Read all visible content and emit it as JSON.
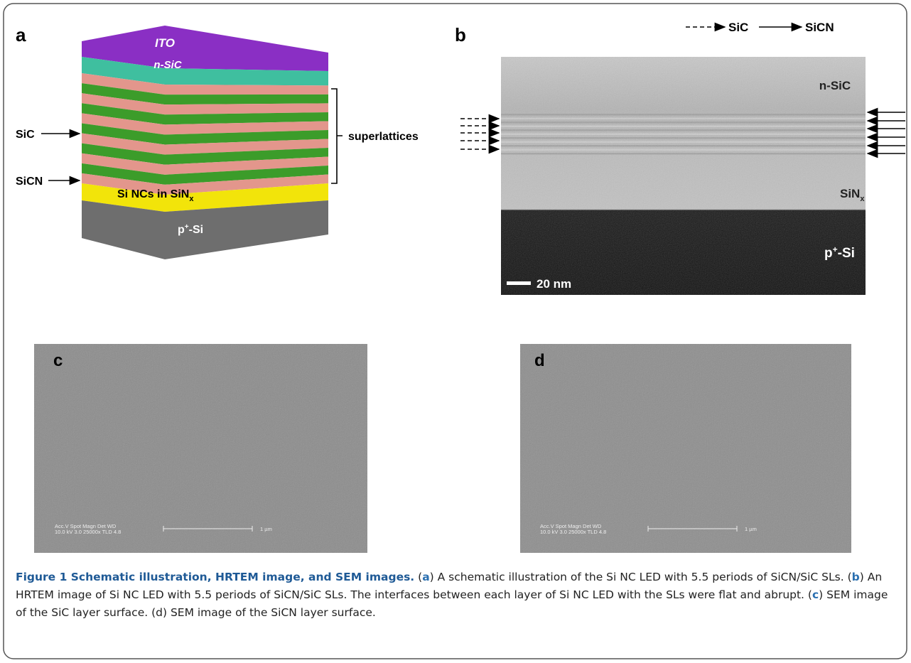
{
  "panel_a": {
    "letter": "a",
    "ito": "ITO",
    "n_sic": "n-SiC",
    "sic": "SiC",
    "sicn": "SiCN",
    "si_ncs": "Si NCs in SiN",
    "si_ncs_sub": "x",
    "p_si_base": "p",
    "p_si_sup": "+",
    "p_si_rest": "-Si",
    "superlattices": "superlattices"
  },
  "panel_b": {
    "letter": "b",
    "legend_dashed": "SiC",
    "legend_solid": "SiCN",
    "n_sic": "n-SiC",
    "sin_base": "SiN",
    "sin_sub": "x",
    "p_si_base": "p",
    "p_si_sup": "+",
    "p_si_rest": "-Si",
    "scale": "20 nm"
  },
  "panel_c": {
    "letter": "c",
    "info_line1": "Acc.V  Spot Magn   Det  WD",
    "info_line2": "10.0 kV 3.0  25000x  TLD  4.8",
    "scale": "1 µm"
  },
  "panel_d": {
    "letter": "d",
    "info_line1": "Acc.V  Spot Magn   Det  WD",
    "info_line2": "10.0 kV 3.0  25000x  TLD  4.8",
    "scale": "1 µm"
  },
  "caption": {
    "segments": [
      {
        "text": "Figure 1 Schematic illustration, HRTEM image, and SEM images.",
        "bold": true
      },
      {
        "text": " (",
        "bold": false
      },
      {
        "text": "a",
        "bold": true
      },
      {
        "text": ") A schematic illustration of the Si NC LED with 5.5 periods of SiCN/SiC SLs. (",
        "bold": false
      },
      {
        "text": "b",
        "bold": true
      },
      {
        "text": ") An HRTEM image of Si NC LED with 5.5 periods of SiCN/SiC SLs. The interfaces between each layer of Si NC LED with the SLs were flat and abrupt. (",
        "bold": false
      },
      {
        "text": "c",
        "bold": true
      },
      {
        "text": ") SEM image of the SiC layer surface. (d) SEM image of the SiCN layer surface.",
        "bold": false
      }
    ]
  }
}
